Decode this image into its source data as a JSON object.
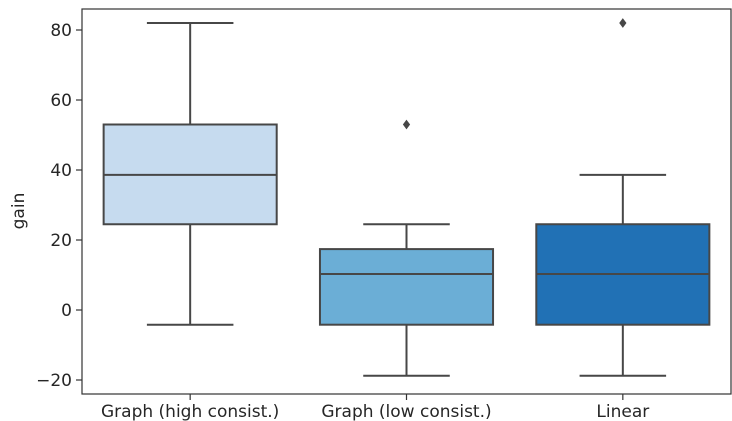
{
  "chart_data": {
    "type": "box",
    "categories": [
      "Graph (high consist.)",
      "Graph (low consist.)",
      "Linear"
    ],
    "ylabel": "gain",
    "xlabel": "",
    "ylim": [
      -24,
      86
    ],
    "yticks": [
      -20,
      0,
      20,
      40,
      60,
      80
    ],
    "ytick_labels": [
      "−20",
      "0",
      "20",
      "40",
      "60",
      "80"
    ],
    "grid": false,
    "boxes": [
      {
        "category": "Graph (high consist.)",
        "whisker_low": -4.2,
        "q1": 24.5,
        "median": 38.6,
        "q3": 53.0,
        "whisker_high": 82.0,
        "outliers": [],
        "color": "#c6dbef"
      },
      {
        "category": "Graph (low consist.)",
        "whisker_low": -18.8,
        "q1": -4.2,
        "median": 10.3,
        "q3": 17.4,
        "whisker_high": 24.5,
        "outliers": [
          53.0
        ],
        "color": "#6baed6"
      },
      {
        "category": "Linear",
        "whisker_low": -18.8,
        "q1": -4.2,
        "median": 10.3,
        "q3": 24.5,
        "whisker_high": 38.6,
        "outliers": [
          82.0
        ],
        "color": "#2171b5"
      }
    ]
  }
}
